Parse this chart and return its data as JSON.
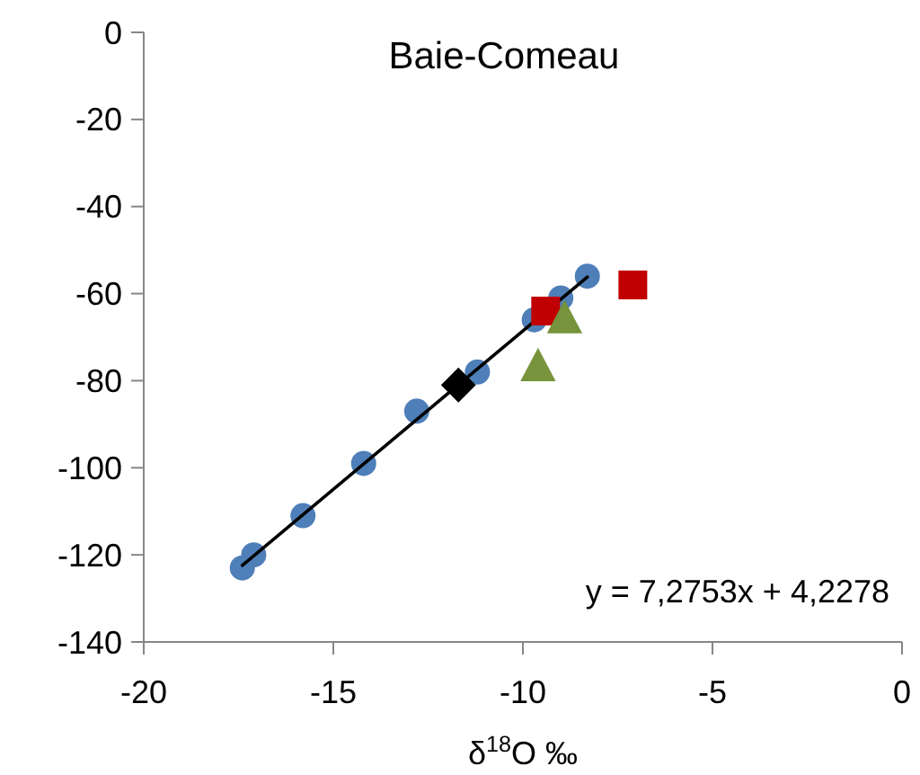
{
  "chart_data": {
    "type": "scatter",
    "title": "Baie-Comeau",
    "xlabel": "δ$^{18}$O ‰",
    "annotations": [
      "y = 7,2753x + 4,2278"
    ],
    "xlim": [
      -20,
      0
    ],
    "ylim": [
      -140,
      0
    ],
    "xticks": [
      -20,
      -15,
      -10,
      -5,
      0
    ],
    "yticks": [
      -140,
      -120,
      -100,
      -80,
      -60,
      -40,
      -20,
      0
    ],
    "series": [
      {
        "marker": "circle",
        "color": "#4f7fb8",
        "x": [
          -17.4,
          -17.1,
          -15.8,
          -14.2,
          -12.8,
          -11.2,
          -9.7,
          -9.0,
          -8.3
        ],
        "values": [
          -123,
          -120,
          -111,
          -99,
          -87,
          -78,
          -66,
          -61,
          -56
        ]
      },
      {
        "type": "line",
        "marker": "none",
        "color": "#000000",
        "x": [
          -17.4,
          -8.3
        ],
        "values": [
          -122.4,
          -56.2
        ]
      },
      {
        "marker": "diamond",
        "color": "#000000",
        "x": [
          -11.7
        ],
        "values": [
          -81
        ]
      },
      {
        "marker": "square",
        "color": "#c00000",
        "x": [
          -9.4
        ],
        "values": [
          -64
        ]
      },
      {
        "marker": "square",
        "color": "#c00000",
        "x": [
          -7.1
        ],
        "values": [
          -58
        ]
      },
      {
        "marker": "triangle",
        "color": "#77933c",
        "x": [
          -8.9
        ],
        "values": [
          -66
        ]
      },
      {
        "marker": "triangle",
        "color": "#77933c",
        "x": [
          -9.6
        ],
        "values": [
          -77
        ]
      }
    ]
  }
}
